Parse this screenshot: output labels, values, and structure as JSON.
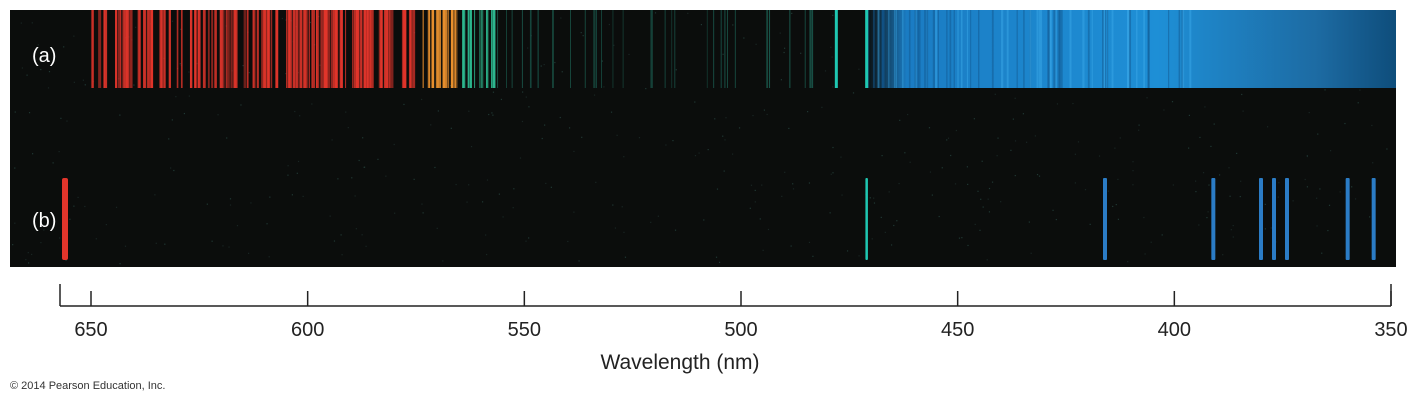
{
  "panels": {
    "a": {
      "label": "(a)"
    },
    "b": {
      "label": "(b)"
    }
  },
  "axis": {
    "label": "Wavelength (nm)",
    "ticks": [
      650,
      600,
      550,
      500,
      450,
      400,
      350
    ],
    "range_nm": [
      657,
      350
    ],
    "reversed": true
  },
  "copyright": "© 2014 Pearson Education, Inc.",
  "colors": {
    "background_band": "#0b0d0c",
    "red": "#e1352b",
    "orange": "#e9902e",
    "green": "#2fbf95",
    "teal": "#1fc7b2",
    "blue": "#1f7fc4",
    "violet_blue": "#2b7cc6"
  },
  "spectra": {
    "a": {
      "type": "continuous-with-lines",
      "regions": [
        {
          "from_nm": 650,
          "to_nm": 575,
          "color": "red"
        },
        {
          "from_nm": 575,
          "to_nm": 565,
          "color": "orange"
        },
        {
          "from_nm": 565,
          "to_nm": 557,
          "color": "green"
        },
        {
          "from_nm": 471,
          "to_nm": 350,
          "color": "blue"
        }
      ],
      "lines_nm": [
        478,
        471
      ]
    },
    "b": {
      "type": "emission",
      "lines": [
        {
          "nm": 656,
          "color": "red"
        },
        {
          "nm": 471,
          "color": "teal"
        },
        {
          "nm": 416,
          "color": "violet_blue"
        },
        {
          "nm": 391,
          "color": "violet_blue"
        },
        {
          "nm": 380,
          "color": "violet_blue"
        },
        {
          "nm": 377,
          "color": "violet_blue"
        },
        {
          "nm": 374,
          "color": "violet_blue"
        },
        {
          "nm": 360,
          "color": "violet_blue"
        },
        {
          "nm": 354,
          "color": "violet_blue"
        }
      ]
    }
  }
}
